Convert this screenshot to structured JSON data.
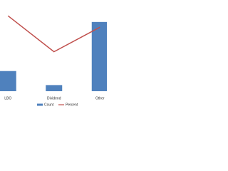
{
  "chart_data": {
    "type": "bar",
    "categories": [
      "LBO",
      "Dividend",
      "Other"
    ],
    "series": [
      {
        "name": "Count",
        "type": "bar",
        "color": "#4f81bd",
        "values": [
          23,
          7,
          79
        ]
      },
      {
        "name": "Percent",
        "type": "line",
        "axis": "y2",
        "color": "#c0504d",
        "values": [
          86,
          45,
          73
        ]
      }
    ],
    "ylim": [
      0,
      100
    ],
    "y2lim": [
      0,
      100
    ],
    "legend": "bottom"
  }
}
